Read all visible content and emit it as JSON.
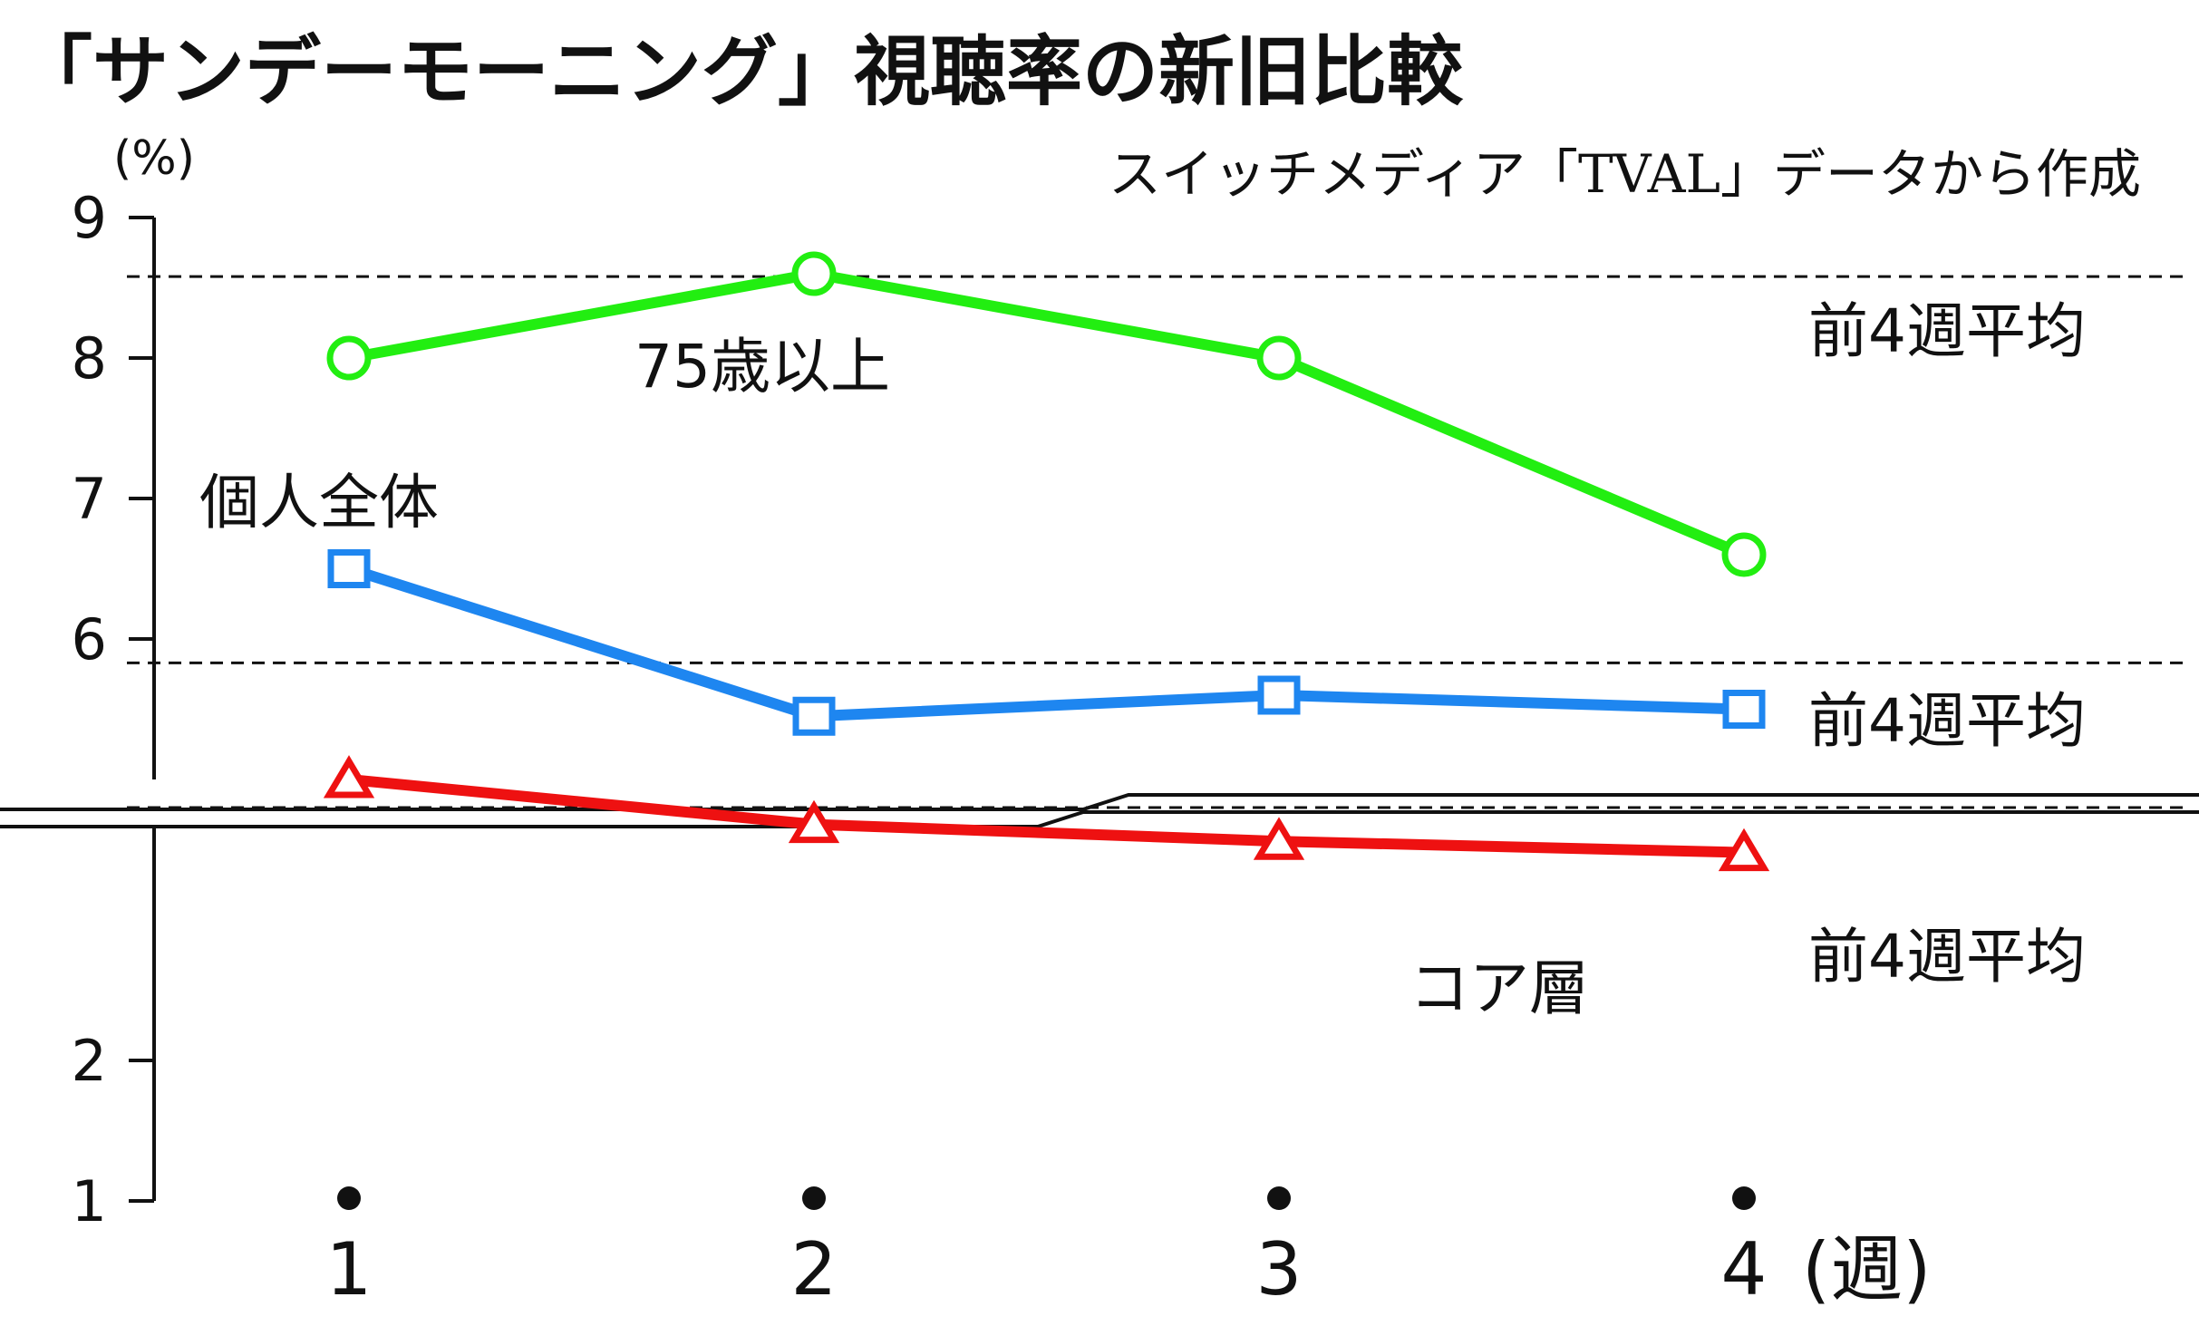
{
  "title": "「サンデーモーニング」視聴率の新旧比較",
  "source": "スイッチメディア「TVAL」データから作成",
  "chart_data": {
    "type": "line",
    "title": "「サンデーモーニング」視聴率の新旧比較",
    "ylabel": "(%)",
    "xlabel": "(週)",
    "x": [
      1,
      2,
      3,
      4
    ],
    "x_tick_labels": [
      "1",
      "2",
      "3",
      "4"
    ],
    "y_tick_labels": [
      "9",
      "8",
      "7",
      "6",
      "2",
      "1"
    ],
    "axis_break": true,
    "upper_ylim": [
      5,
      9
    ],
    "lower_ylim": [
      1,
      4.5
    ],
    "grid": false,
    "series": [
      {
        "name": "75歳以上",
        "marker": "circle",
        "color": "#22ee11",
        "values": [
          8.0,
          8.6,
          8.0,
          6.6
        ],
        "prev4_average": 8.58,
        "average_label": "前4週平均"
      },
      {
        "name": "個人全体",
        "marker": "square",
        "color": "#1e86f0",
        "values": [
          6.5,
          5.45,
          5.6,
          5.5
        ],
        "prev4_average": 5.83,
        "average_label": "前4週平均"
      },
      {
        "name": "コア層",
        "marker": "triangle",
        "color": "#ee1111",
        "values": [
          4.0,
          3.68,
          3.56,
          3.48
        ],
        "prev4_average": 3.8,
        "average_label": "前4週平均"
      }
    ]
  }
}
